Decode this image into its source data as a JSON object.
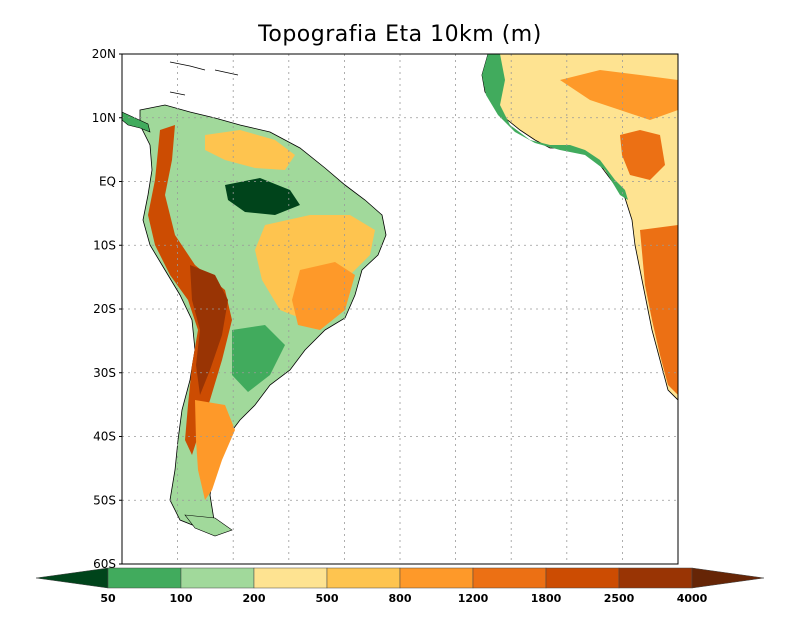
{
  "title": "Topografia Eta 10km (m)",
  "map": {
    "lat_labels": [
      "20N",
      "10N",
      "EQ",
      "10S",
      "20S",
      "30S",
      "40S",
      "50S",
      "60S"
    ],
    "lat_values": [
      20,
      10,
      0,
      -10,
      -20,
      -30,
      -40,
      -50,
      -60
    ],
    "lon_range": [
      -90,
      0
    ],
    "lat_range": [
      -60,
      20
    ],
    "grid": true,
    "ocean_color": "#ffffff"
  },
  "colorbar": {
    "labels": [
      "50",
      "100",
      "200",
      "500",
      "800",
      "1200",
      "1800",
      "2500",
      "4000"
    ],
    "colors": [
      "#00441b",
      "#41ab5d",
      "#a1d99b",
      "#fee391",
      "#fec44f",
      "#fe9929",
      "#ec7014",
      "#cc4c02",
      "#993404",
      "#662506"
    ]
  },
  "regions": [
    {
      "name": "south-america",
      "class": 3
    },
    {
      "name": "africa",
      "class": 4
    }
  ]
}
